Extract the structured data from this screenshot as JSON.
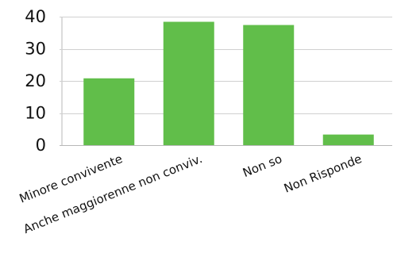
{
  "chart_data": {
    "type": "bar",
    "categories": [
      "Minore convivente",
      "Anche maggiorenne non conviv.",
      "Non so",
      "Non Risponde"
    ],
    "values": [
      20.8,
      38.4,
      37.4,
      3.3
    ],
    "ylim": [
      0,
      40
    ],
    "y_ticks": [
      0,
      10,
      20,
      30,
      40
    ],
    "y_tick_labels": [
      "0",
      "10",
      "20",
      "30",
      "40"
    ],
    "grid": true,
    "legend": "none",
    "colors": {
      "bar": "#61be4a",
      "grid": "#d0d0d0",
      "axis": "#b8b8b8"
    }
  }
}
